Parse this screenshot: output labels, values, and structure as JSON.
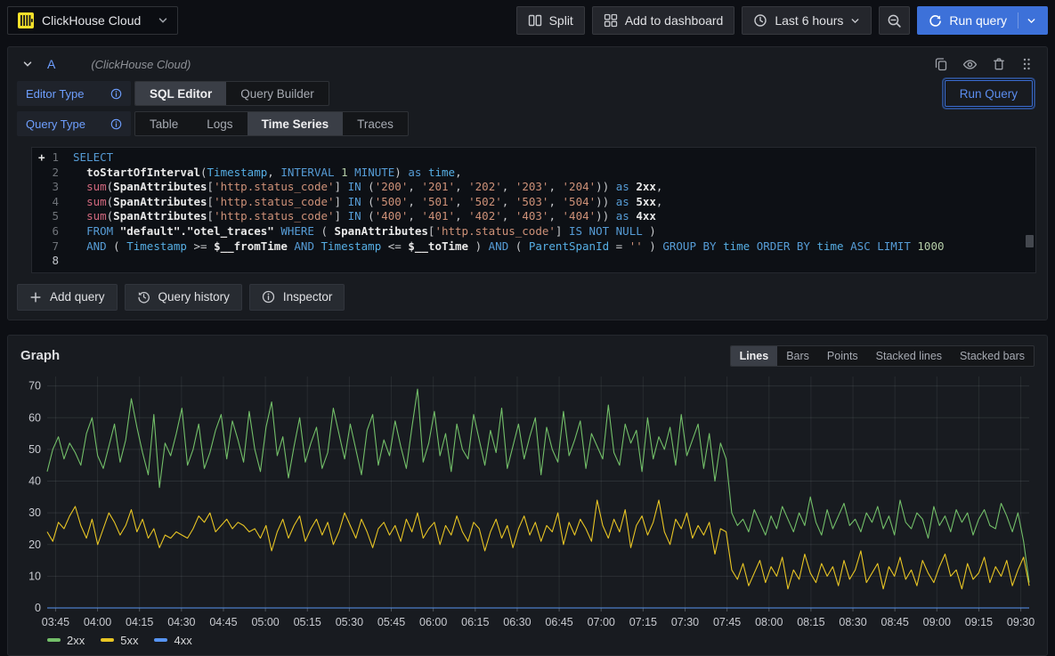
{
  "topbar": {
    "datasource_picker": {
      "label": "ClickHouse Cloud"
    },
    "buttons": {
      "split": "Split",
      "add_to_dashboard": "Add to dashboard",
      "time_range": "Last 6 hours",
      "run_query": "Run query"
    }
  },
  "query_editor": {
    "ref_id": "A",
    "datasource_hint": "(ClickHouse Cloud)",
    "editor_type_label": "Editor Type",
    "editor_type_options": [
      "SQL Editor",
      "Query Builder"
    ],
    "editor_type_selected": "SQL Editor",
    "query_type_label": "Query Type",
    "query_type_options": [
      "Table",
      "Logs",
      "Time Series",
      "Traces"
    ],
    "query_type_selected": "Time Series",
    "run_query_label": "Run Query",
    "sql_lines": [
      [
        [
          "kw",
          "SELECT"
        ]
      ],
      [
        [
          "pl",
          "  "
        ],
        [
          "fn",
          "toStartOfInterval"
        ],
        [
          "pl",
          "("
        ],
        [
          "fld",
          "Timestamp"
        ],
        [
          "pl",
          ", "
        ],
        [
          "kw",
          "INTERVAL"
        ],
        [
          "pl",
          " "
        ],
        [
          "num",
          "1"
        ],
        [
          "pl",
          " "
        ],
        [
          "kw",
          "MINUTE"
        ],
        [
          "pl",
          ") "
        ],
        [
          "kw",
          "as"
        ],
        [
          "pl",
          " "
        ],
        [
          "fld",
          "time"
        ],
        [
          "pl",
          ","
        ]
      ],
      [
        [
          "pl",
          "  "
        ],
        [
          "mag",
          "sum"
        ],
        [
          "pl",
          "("
        ],
        [
          "fn",
          "SpanAttributes"
        ],
        [
          "pl",
          "["
        ],
        [
          "str",
          "'http.status_code'"
        ],
        [
          "pl",
          "] "
        ],
        [
          "kw",
          "IN"
        ],
        [
          "pl",
          " ("
        ],
        [
          "str",
          "'200'"
        ],
        [
          "pl",
          ", "
        ],
        [
          "str",
          "'201'"
        ],
        [
          "pl",
          ", "
        ],
        [
          "str",
          "'202'"
        ],
        [
          "pl",
          ", "
        ],
        [
          "str",
          "'203'"
        ],
        [
          "pl",
          ", "
        ],
        [
          "str",
          "'204'"
        ],
        [
          "pl",
          ")) "
        ],
        [
          "kw",
          "as"
        ],
        [
          "pl",
          " "
        ],
        [
          "fn",
          "2xx"
        ],
        [
          "pl",
          ","
        ]
      ],
      [
        [
          "pl",
          "  "
        ],
        [
          "mag",
          "sum"
        ],
        [
          "pl",
          "("
        ],
        [
          "fn",
          "SpanAttributes"
        ],
        [
          "pl",
          "["
        ],
        [
          "str",
          "'http.status_code'"
        ],
        [
          "pl",
          "] "
        ],
        [
          "kw",
          "IN"
        ],
        [
          "pl",
          " ("
        ],
        [
          "str",
          "'500'"
        ],
        [
          "pl",
          ", "
        ],
        [
          "str",
          "'501'"
        ],
        [
          "pl",
          ", "
        ],
        [
          "str",
          "'502'"
        ],
        [
          "pl",
          ", "
        ],
        [
          "str",
          "'503'"
        ],
        [
          "pl",
          ", "
        ],
        [
          "str",
          "'504'"
        ],
        [
          "pl",
          ")) "
        ],
        [
          "kw",
          "as"
        ],
        [
          "pl",
          " "
        ],
        [
          "fn",
          "5xx"
        ],
        [
          "pl",
          ","
        ]
      ],
      [
        [
          "pl",
          "  "
        ],
        [
          "mag",
          "sum"
        ],
        [
          "pl",
          "("
        ],
        [
          "fn",
          "SpanAttributes"
        ],
        [
          "pl",
          "["
        ],
        [
          "str",
          "'http.status_code'"
        ],
        [
          "pl",
          "] "
        ],
        [
          "kw",
          "IN"
        ],
        [
          "pl",
          " ("
        ],
        [
          "str",
          "'400'"
        ],
        [
          "pl",
          ", "
        ],
        [
          "str",
          "'401'"
        ],
        [
          "pl",
          ", "
        ],
        [
          "str",
          "'402'"
        ],
        [
          "pl",
          ", "
        ],
        [
          "str",
          "'403'"
        ],
        [
          "pl",
          ", "
        ],
        [
          "str",
          "'404'"
        ],
        [
          "pl",
          ")) "
        ],
        [
          "kw",
          "as"
        ],
        [
          "pl",
          " "
        ],
        [
          "fn",
          "4xx"
        ]
      ],
      [
        [
          "pl",
          "  "
        ],
        [
          "kw",
          "FROM"
        ],
        [
          "pl",
          " "
        ],
        [
          "fn",
          "\"default\".\"otel_traces\""
        ],
        [
          "pl",
          " "
        ],
        [
          "kw",
          "WHERE"
        ],
        [
          "pl",
          " ( "
        ],
        [
          "fn",
          "SpanAttributes"
        ],
        [
          "pl",
          "["
        ],
        [
          "str",
          "'http.status_code'"
        ],
        [
          "pl",
          "] "
        ],
        [
          "kw",
          "IS NOT NULL"
        ],
        [
          "pl",
          " )"
        ]
      ],
      [
        [
          "pl",
          "  "
        ],
        [
          "kw",
          "AND"
        ],
        [
          "pl",
          " ( "
        ],
        [
          "fld",
          "Timestamp"
        ],
        [
          "pl",
          " >= "
        ],
        [
          "var",
          "$__fromTime"
        ],
        [
          "pl",
          " "
        ],
        [
          "kw",
          "AND"
        ],
        [
          "pl",
          " "
        ],
        [
          "fld",
          "Timestamp"
        ],
        [
          "pl",
          " <= "
        ],
        [
          "var",
          "$__toTime"
        ],
        [
          "pl",
          " ) "
        ],
        [
          "kw",
          "AND"
        ],
        [
          "pl",
          " ( "
        ],
        [
          "fld",
          "ParentSpanId"
        ],
        [
          "pl",
          " = "
        ],
        [
          "str",
          "''"
        ],
        [
          "pl",
          " ) "
        ],
        [
          "kw",
          "GROUP BY"
        ],
        [
          "pl",
          " "
        ],
        [
          "fld",
          "time"
        ],
        [
          "pl",
          " "
        ],
        [
          "kw",
          "ORDER BY"
        ],
        [
          "pl",
          " "
        ],
        [
          "fld",
          "time"
        ],
        [
          "pl",
          " "
        ],
        [
          "kw",
          "ASC"
        ],
        [
          "pl",
          " "
        ],
        [
          "kw",
          "LIMIT"
        ],
        [
          "pl",
          " "
        ],
        [
          "num",
          "1000"
        ]
      ],
      []
    ],
    "footer_buttons": [
      "Add query",
      "Query history",
      "Inspector"
    ]
  },
  "graph": {
    "title": "Graph",
    "modes": [
      "Lines",
      "Bars",
      "Points",
      "Stacked lines",
      "Stacked bars"
    ],
    "selected_mode": "Lines"
  },
  "chart_data": {
    "type": "line",
    "title": "Graph",
    "grid": true,
    "legend_position": "bottom-left",
    "ylim": [
      0,
      73
    ],
    "y_ticks": [
      0,
      10,
      20,
      30,
      40,
      50,
      60,
      70
    ],
    "x_tick_labels": [
      "03:45",
      "04:00",
      "04:15",
      "04:30",
      "04:45",
      "05:00",
      "05:15",
      "05:30",
      "05:45",
      "06:00",
      "06:15",
      "06:30",
      "06:45",
      "07:00",
      "07:15",
      "07:30",
      "07:45",
      "08:00",
      "08:15",
      "08:30",
      "08:45",
      "09:00",
      "09:15",
      "09:30"
    ],
    "x_total_minutes": 351,
    "x_tick_first_minute": 3,
    "x_tick_step_minutes": 15,
    "series": [
      {
        "name": "2xx",
        "color": "#73BF69",
        "values": [
          43,
          50,
          54,
          47,
          52,
          49,
          45,
          55,
          60,
          48,
          44,
          51,
          58,
          46,
          53,
          66,
          57,
          49,
          42,
          61,
          38,
          52,
          48,
          55,
          63,
          45,
          50,
          58,
          44,
          49,
          56,
          61,
          47,
          59,
          53,
          46,
          62,
          50,
          43,
          57,
          65,
          48,
          54,
          41,
          51,
          60,
          46,
          52,
          57,
          44,
          49,
          63,
          55,
          47,
          58,
          50,
          42,
          56,
          61,
          45,
          53,
          48,
          59,
          51,
          44,
          57,
          69,
          46,
          52,
          62,
          48,
          55,
          43,
          58,
          50,
          47,
          61,
          53,
          45,
          56,
          49,
          63,
          44,
          51,
          58,
          47,
          54,
          60,
          42,
          57,
          50,
          46,
          62,
          48,
          53,
          59,
          44,
          55,
          51,
          47,
          64,
          49,
          45,
          58,
          52,
          56,
          43,
          60,
          47,
          54,
          50,
          57,
          45,
          61,
          48,
          53,
          58,
          44,
          55,
          40,
          52,
          47,
          30,
          26,
          28,
          24,
          31,
          27,
          23,
          29,
          25,
          32,
          28,
          24,
          30,
          26,
          35,
          27,
          23,
          31,
          25,
          29,
          33,
          26,
          28,
          24,
          30,
          27,
          32,
          25,
          29,
          23,
          34,
          27,
          25,
          30,
          28,
          22,
          32,
          26,
          29,
          24,
          31,
          27,
          30,
          23,
          28,
          31,
          26,
          25,
          33,
          29,
          24,
          30,
          21,
          8
        ]
      },
      {
        "name": "5xx",
        "color": "#E8C524",
        "values": [
          24,
          21,
          27,
          25,
          29,
          32,
          26,
          22,
          28,
          20,
          25,
          30,
          27,
          23,
          26,
          31,
          24,
          28,
          22,
          25,
          19,
          23,
          22,
          24,
          23,
          22,
          25,
          29,
          27,
          30,
          24,
          26,
          28,
          25,
          27,
          26,
          24,
          25,
          22,
          26,
          18,
          24,
          28,
          22,
          26,
          29,
          21,
          25,
          28,
          23,
          27,
          20,
          24,
          30,
          26,
          22,
          28,
          24,
          19,
          25,
          27,
          23,
          26,
          21,
          28,
          24,
          30,
          22,
          25,
          27,
          20,
          26,
          23,
          29,
          24,
          21,
          27,
          25,
          18,
          24,
          28,
          22,
          26,
          19,
          25,
          29,
          23,
          27,
          21,
          26,
          24,
          30,
          20,
          27,
          23,
          28,
          25,
          21,
          34,
          26,
          22,
          28,
          24,
          31,
          19,
          26,
          29,
          23,
          27,
          34,
          24,
          20,
          28,
          25,
          30,
          22,
          26,
          23,
          27,
          17,
          25,
          24,
          12,
          9,
          14,
          7,
          11,
          15,
          8,
          13,
          10,
          16,
          6,
          12,
          9,
          17,
          11,
          8,
          14,
          10,
          13,
          7,
          15,
          9,
          12,
          18,
          8,
          11,
          14,
          6,
          13,
          10,
          16,
          9,
          12,
          7,
          15,
          11,
          8,
          13,
          17,
          10,
          12,
          6,
          14,
          9,
          11,
          16,
          8,
          13,
          10,
          15,
          7,
          12,
          16,
          7
        ]
      },
      {
        "name": "4xx",
        "color": "#5794F2",
        "values": [
          0,
          0,
          0,
          0,
          0,
          0,
          0,
          0,
          0,
          0,
          0,
          0,
          0,
          0,
          0,
          0,
          0,
          0,
          0,
          0,
          0,
          0,
          0,
          0,
          0,
          0,
          0,
          0,
          0,
          0,
          0,
          0,
          0,
          0,
          0,
          0,
          0,
          0,
          0,
          0,
          0,
          0,
          0,
          0,
          0,
          0,
          0,
          0,
          0,
          0,
          0,
          0,
          0,
          0,
          0,
          0,
          0,
          0,
          0,
          0,
          0,
          0,
          0,
          0,
          0,
          0,
          0,
          0,
          0,
          0,
          0,
          0,
          0,
          0,
          0,
          0,
          0,
          0,
          0,
          0,
          0,
          0,
          0,
          0,
          0,
          0,
          0,
          0,
          0,
          0,
          0,
          0,
          0,
          0,
          0,
          0,
          0,
          0,
          0,
          0,
          0,
          0,
          0,
          0,
          0,
          0,
          0,
          0,
          0,
          0,
          0,
          0,
          0,
          0,
          0,
          0,
          0,
          0,
          0,
          0,
          0,
          0,
          0,
          0,
          0,
          0,
          0,
          0,
          0,
          0,
          0,
          0,
          0,
          0,
          0,
          0,
          0,
          0,
          0,
          0,
          0,
          0,
          0,
          0,
          0,
          0,
          0,
          0,
          0,
          0,
          0,
          0,
          0,
          0,
          0,
          0,
          0,
          0,
          0,
          0,
          0,
          0,
          0,
          0,
          0,
          0,
          0,
          0,
          0,
          0,
          0,
          0,
          0,
          0,
          0,
          0
        ]
      }
    ]
  }
}
